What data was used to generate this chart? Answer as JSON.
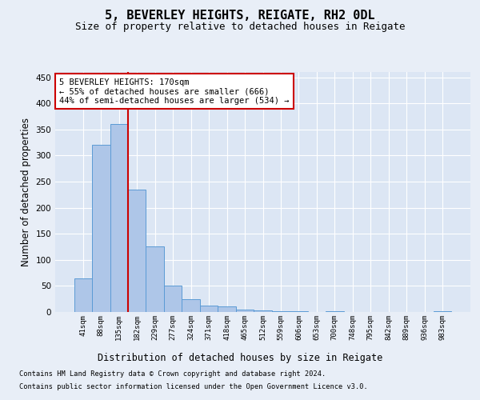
{
  "title1": "5, BEVERLEY HEIGHTS, REIGATE, RH2 0DL",
  "title2": "Size of property relative to detached houses in Reigate",
  "xlabel": "Distribution of detached houses by size in Reigate",
  "ylabel": "Number of detached properties",
  "footer1": "Contains HM Land Registry data © Crown copyright and database right 2024.",
  "footer2": "Contains public sector information licensed under the Open Government Licence v3.0.",
  "categories": [
    "41sqm",
    "88sqm",
    "135sqm",
    "182sqm",
    "229sqm",
    "277sqm",
    "324sqm",
    "371sqm",
    "418sqm",
    "465sqm",
    "512sqm",
    "559sqm",
    "606sqm",
    "653sqm",
    "700sqm",
    "748sqm",
    "795sqm",
    "842sqm",
    "889sqm",
    "936sqm",
    "983sqm"
  ],
  "bar_values": [
    65,
    320,
    360,
    235,
    125,
    50,
    25,
    13,
    10,
    5,
    3,
    2,
    1,
    0,
    2,
    0,
    0,
    0,
    0,
    0,
    2
  ],
  "bar_color": "#aec6e8",
  "bar_edge_color": "#5b9bd5",
  "property_line_x": 2.5,
  "annotation_title": "5 BEVERLEY HEIGHTS: 170sqm",
  "annotation_line1": "← 55% of detached houses are smaller (666)",
  "annotation_line2": "44% of semi-detached houses are larger (534) →",
  "annotation_box_color": "#ffffff",
  "annotation_box_edge": "#cc0000",
  "red_line_color": "#cc0000",
  "background_color": "#e8eef7",
  "plot_bg_color": "#dce6f4",
  "grid_color": "#ffffff",
  "ylim": [
    0,
    460
  ],
  "title1_fontsize": 11,
  "title2_fontsize": 9,
  "xlabel_fontsize": 8.5,
  "ylabel_fontsize": 8.5,
  "footer_fontsize": 6.2,
  "annot_fontsize": 7.5
}
